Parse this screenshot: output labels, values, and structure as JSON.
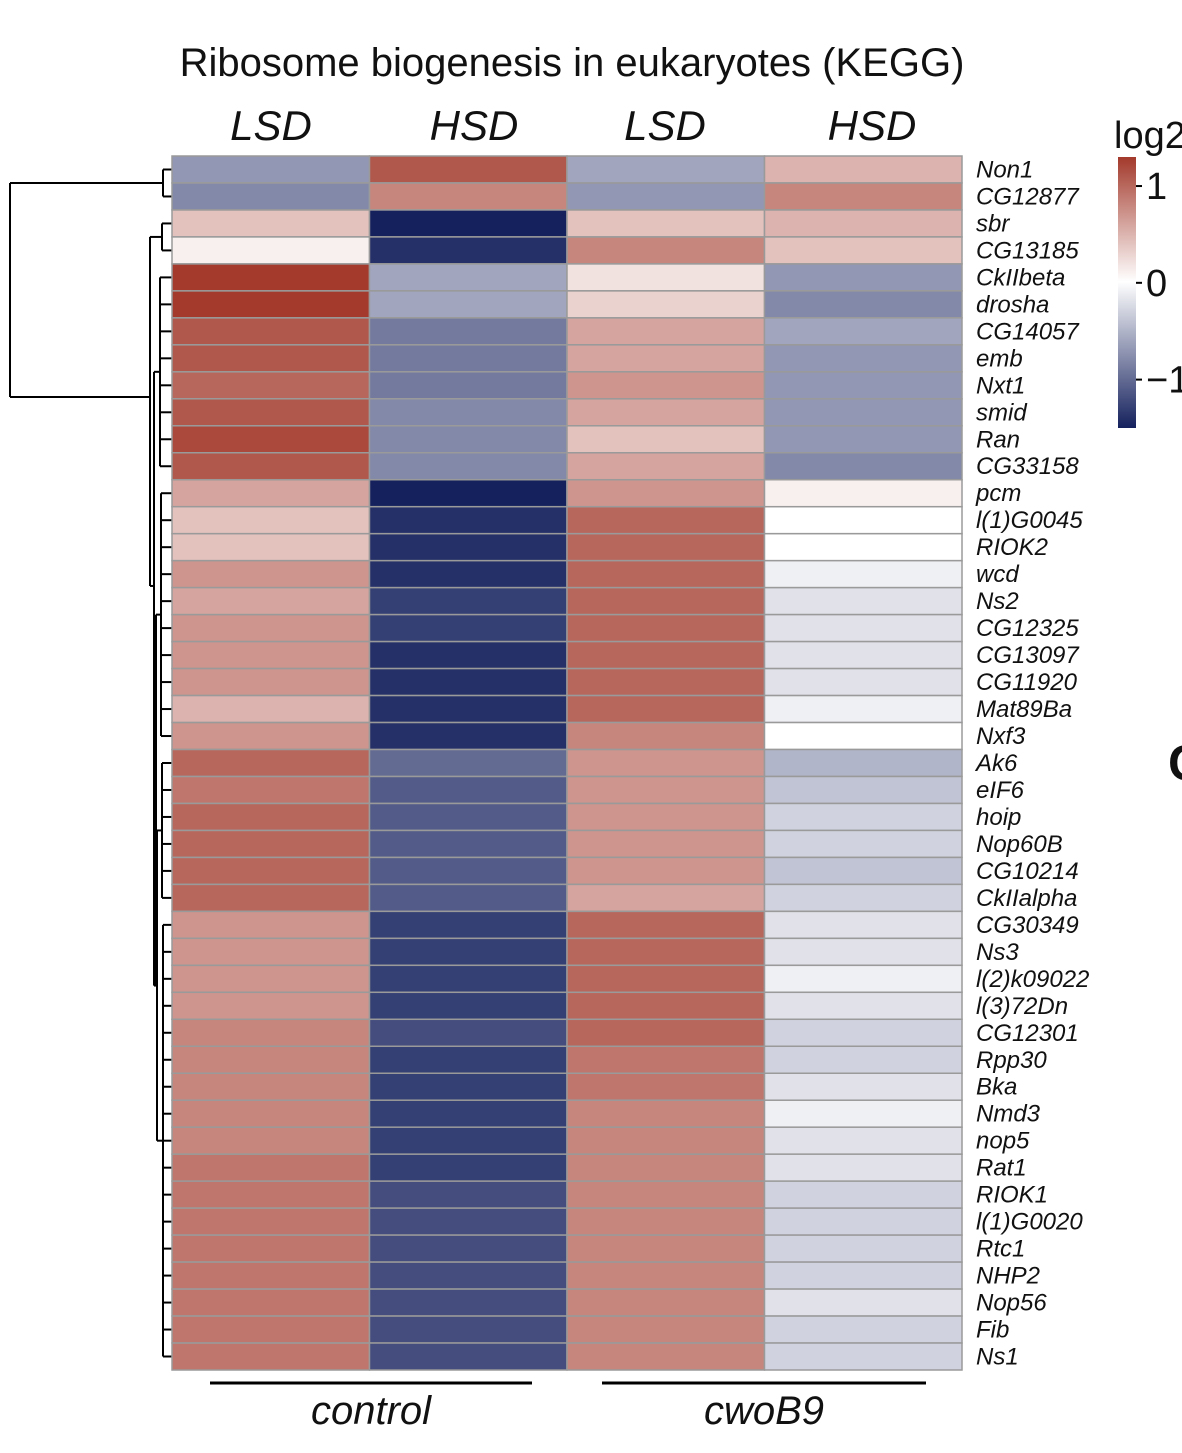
{
  "chart_data": {
    "type": "heatmap",
    "title": "Ribosome biogenesis in eukaryotes (KEGG)",
    "columns": [
      "LSD",
      "HSD",
      "LSD",
      "HSD"
    ],
    "groups": [
      {
        "label": "control",
        "columns": [
          0,
          1
        ]
      },
      {
        "label": "cwoB9",
        "columns": [
          2,
          3
        ]
      }
    ],
    "rows": [
      "Non1",
      "CG12877",
      "sbr",
      "CG13185",
      "CkIIbeta",
      "drosha",
      "CG14057",
      "emb",
      "Nxt1",
      "smid",
      "Ran",
      "CG33158",
      "pcm",
      "l(1)G0045",
      "RIOK2",
      "wcd",
      "Ns2",
      "CG12325",
      "CG13097",
      "CG11920",
      "Mat89Ba",
      "Nxf3",
      "Ak6",
      "eIF6",
      "hoip",
      "Nop60B",
      "CG10214",
      "CkIIalpha",
      "CG30349",
      "Ns3",
      "l(2)k09022",
      "l(3)72Dn",
      "CG12301",
      "Rpp30",
      "Bka",
      "Nmd3",
      "nop5",
      "Rat1",
      "RIOK1",
      "l(1)G0020",
      "Rtc1",
      "NHP2",
      "Nop56",
      "Fib",
      "Ns1"
    ],
    "values": [
      [
        -0.7,
        1.1,
        -0.6,
        0.5
      ],
      [
        -0.8,
        0.8,
        -0.7,
        0.8
      ],
      [
        0.4,
        -1.5,
        0.4,
        0.5
      ],
      [
        0.1,
        -1.4,
        0.8,
        0.4
      ],
      [
        1.3,
        -0.6,
        0.2,
        -0.7
      ],
      [
        1.3,
        -0.6,
        0.3,
        -0.8
      ],
      [
        1.1,
        -0.9,
        0.6,
        -0.6
      ],
      [
        1.1,
        -0.9,
        0.6,
        -0.7
      ],
      [
        1.0,
        -0.9,
        0.7,
        -0.7
      ],
      [
        1.1,
        -0.8,
        0.6,
        -0.7
      ],
      [
        1.2,
        -0.8,
        0.4,
        -0.7
      ],
      [
        1.1,
        -0.8,
        0.6,
        -0.8
      ],
      [
        0.6,
        -1.5,
        0.7,
        0.1
      ],
      [
        0.4,
        -1.4,
        1.0,
        0.0
      ],
      [
        0.4,
        -1.4,
        1.0,
        0.0
      ],
      [
        0.7,
        -1.4,
        1.0,
        -0.1
      ],
      [
        0.6,
        -1.3,
        1.0,
        -0.2
      ],
      [
        0.7,
        -1.3,
        1.0,
        -0.2
      ],
      [
        0.7,
        -1.4,
        1.0,
        -0.2
      ],
      [
        0.7,
        -1.4,
        1.0,
        -0.2
      ],
      [
        0.5,
        -1.4,
        1.0,
        -0.1
      ],
      [
        0.7,
        -1.4,
        0.8,
        0.0
      ],
      [
        1.0,
        -1.0,
        0.7,
        -0.5
      ],
      [
        0.9,
        -1.1,
        0.7,
        -0.4
      ],
      [
        1.0,
        -1.1,
        0.7,
        -0.3
      ],
      [
        1.0,
        -1.1,
        0.7,
        -0.3
      ],
      [
        1.0,
        -1.1,
        0.7,
        -0.4
      ],
      [
        1.0,
        -1.1,
        0.6,
        -0.3
      ],
      [
        0.7,
        -1.3,
        1.0,
        -0.2
      ],
      [
        0.7,
        -1.3,
        1.0,
        -0.2
      ],
      [
        0.7,
        -1.3,
        1.0,
        -0.1
      ],
      [
        0.7,
        -1.3,
        1.0,
        -0.2
      ],
      [
        0.8,
        -1.2,
        1.0,
        -0.3
      ],
      [
        0.8,
        -1.3,
        0.9,
        -0.3
      ],
      [
        0.8,
        -1.3,
        0.9,
        -0.2
      ],
      [
        0.8,
        -1.3,
        0.8,
        -0.1
      ],
      [
        0.8,
        -1.3,
        0.8,
        -0.2
      ],
      [
        0.9,
        -1.3,
        0.8,
        -0.2
      ],
      [
        0.9,
        -1.2,
        0.8,
        -0.3
      ],
      [
        0.9,
        -1.2,
        0.8,
        -0.3
      ],
      [
        0.9,
        -1.2,
        0.8,
        -0.3
      ],
      [
        0.9,
        -1.2,
        0.8,
        -0.3
      ],
      [
        0.9,
        -1.2,
        0.8,
        -0.2
      ],
      [
        0.9,
        -1.2,
        0.8,
        -0.3
      ],
      [
        0.9,
        -1.2,
        0.8,
        -0.3
      ]
    ],
    "colorbar": {
      "label": "log2",
      "range": [
        -1.5,
        1.3
      ],
      "ticks": [
        {
          "value": 1,
          "label": "1"
        },
        {
          "value": 0,
          "label": "0"
        },
        {
          "value": -1,
          "label": "−1"
        }
      ],
      "colors": {
        "high": "#a33a2c",
        "mid": "#ffffff",
        "low": "#15215d"
      }
    },
    "dendrogram": "rows",
    "fragment_label": "C"
  }
}
